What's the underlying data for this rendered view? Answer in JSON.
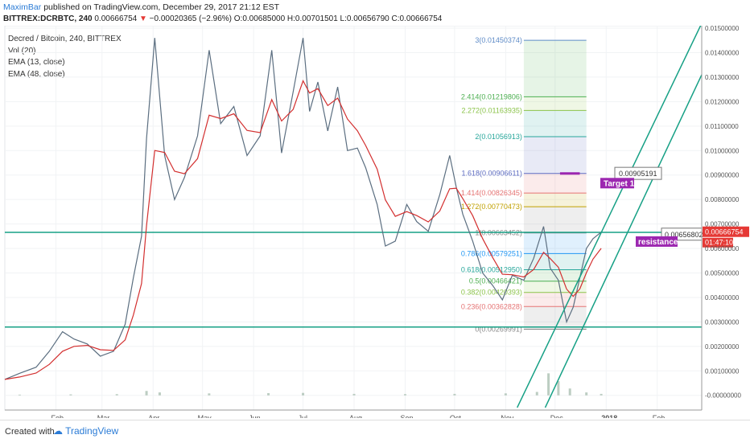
{
  "header": {
    "author": "MaximBar",
    "published": "published on TradingView.com, December 29, 2017 21:12 EST",
    "symbol": "BITTREX:DCRBTC, 240",
    "last": "0.00666754",
    "change": "−0.00020365 (−2.96%)",
    "ohlc": "O:0.00685000 H:0.00701501 L:0.00656790 C:0.00666754"
  },
  "legend": [
    "Decred / Bitcoin, 240, BITTREX",
    "Vol (20)",
    "EMA (13, close)",
    "EMA (48, close)"
  ],
  "footer": {
    "created_with": "Created with",
    "brand": "TradingView"
  },
  "colors": {
    "price": "#5b6e80",
    "ema13": "#d32f2f",
    "ema48": "#d32f2f",
    "channel": "#16a085",
    "target": "#9c27b0"
  },
  "chart_data": {
    "type": "line",
    "x_ticks": [
      "Feb",
      "Mar",
      "Apr",
      "May",
      "Jun",
      "Jul",
      "Aug",
      "Sep",
      "Oct",
      "Nov",
      "Dec",
      "2018",
      "Feb"
    ],
    "y_ticks": [
      "0.01500000",
      "0.01400000",
      "0.01300000",
      "0.01200000",
      "0.01100000",
      "0.01000000",
      "0.00900000",
      "0.00800000",
      "0.00700000",
      "0.00600000",
      "0.00500000",
      "0.00400000",
      "0.00300000",
      "0.00200000",
      "0.00100000",
      "-0.00000000"
    ],
    "ylim": [
      -0.0006,
      0.0151
    ],
    "price_series": [
      [
        "2017-01-01",
        0.00065
      ],
      [
        "2017-01-10",
        0.0009
      ],
      [
        "2017-01-20",
        0.00115
      ],
      [
        "2017-01-28",
        0.0018
      ],
      [
        "2017-02-05",
        0.0026
      ],
      [
        "2017-02-12",
        0.0023
      ],
      [
        "2017-02-20",
        0.0021
      ],
      [
        "2017-02-28",
        0.0016
      ],
      [
        "2017-03-08",
        0.0018
      ],
      [
        "2017-03-15",
        0.0029
      ],
      [
        "2017-03-20",
        0.0048
      ],
      [
        "2017-03-25",
        0.0065
      ],
      [
        "2017-03-28",
        0.0105
      ],
      [
        "2017-04-02",
        0.0146
      ],
      [
        "2017-04-08",
        0.0098
      ],
      [
        "2017-04-14",
        0.008
      ],
      [
        "2017-04-20",
        0.0089
      ],
      [
        "2017-04-28",
        0.0106
      ],
      [
        "2017-05-05",
        0.0141
      ],
      [
        "2017-05-12",
        0.0111
      ],
      [
        "2017-05-20",
        0.0118
      ],
      [
        "2017-05-28",
        0.0098
      ],
      [
        "2017-06-05",
        0.0106
      ],
      [
        "2017-06-12",
        0.0141
      ],
      [
        "2017-06-18",
        0.0099
      ],
      [
        "2017-06-25",
        0.0124
      ],
      [
        "2017-07-01",
        0.0146
      ],
      [
        "2017-07-05",
        0.0116
      ],
      [
        "2017-07-10",
        0.0128
      ],
      [
        "2017-07-16",
        0.0108
      ],
      [
        "2017-07-22",
        0.0126
      ],
      [
        "2017-07-28",
        0.01
      ],
      [
        "2017-08-03",
        0.0101
      ],
      [
        "2017-08-08",
        0.0093
      ],
      [
        "2017-08-15",
        0.0078
      ],
      [
        "2017-08-20",
        0.0061
      ],
      [
        "2017-08-26",
        0.0063
      ],
      [
        "2017-09-02",
        0.0078
      ],
      [
        "2017-09-08",
        0.0071
      ],
      [
        "2017-09-15",
        0.0067
      ],
      [
        "2017-09-22",
        0.0082
      ],
      [
        "2017-09-28",
        0.0098
      ],
      [
        "2017-10-02",
        0.0085
      ],
      [
        "2017-10-06",
        0.0074
      ],
      [
        "2017-10-12",
        0.0063
      ],
      [
        "2017-10-18",
        0.005
      ],
      [
        "2017-10-24",
        0.0045
      ],
      [
        "2017-10-30",
        0.0039
      ],
      [
        "2017-11-05",
        0.0049
      ],
      [
        "2017-11-12",
        0.0047
      ],
      [
        "2017-11-18",
        0.0056
      ],
      [
        "2017-11-24",
        0.0069
      ],
      [
        "2017-11-28",
        0.0052
      ],
      [
        "2017-12-03",
        0.0047
      ],
      [
        "2017-12-08",
        0.003
      ],
      [
        "2017-12-12",
        0.0036
      ],
      [
        "2017-12-16",
        0.0048
      ],
      [
        "2017-12-20",
        0.006
      ],
      [
        "2017-12-24",
        0.0064
      ],
      [
        "2017-12-29",
        0.00667
      ]
    ],
    "volume_series": [
      [
        "2017-01-10",
        3e-05
      ],
      [
        "2017-02-10",
        4e-05
      ],
      [
        "2017-03-10",
        5e-05
      ],
      [
        "2017-03-28",
        0.00018
      ],
      [
        "2017-04-05",
        0.00012
      ],
      [
        "2017-05-05",
        8e-05
      ],
      [
        "2017-06-10",
        9e-05
      ],
      [
        "2017-07-01",
        0.0001
      ],
      [
        "2017-08-01",
        6e-05
      ],
      [
        "2017-09-01",
        5e-05
      ],
      [
        "2017-10-01",
        6e-05
      ],
      [
        "2017-11-01",
        8e-05
      ],
      [
        "2017-11-20",
        0.00014
      ],
      [
        "2017-11-27",
        0.0009
      ],
      [
        "2017-12-03",
        0.00058
      ],
      [
        "2017-12-10",
        0.00028
      ],
      [
        "2017-12-20",
        0.00012
      ],
      [
        "2017-12-29",
        6e-05
      ]
    ],
    "fibonacci": [
      {
        "label": "3(0.01450374)",
        "value": 0.01450374,
        "color": "#5e8bc7"
      },
      {
        "label": "2.414(0.01219806)",
        "value": 0.01219806,
        "color": "#4caf50"
      },
      {
        "label": "2.272(0.01163935)",
        "value": 0.01163935,
        "color": "#8bc34a"
      },
      {
        "label": "2(0.01056913)",
        "value": 0.01056913,
        "color": "#26a69a"
      },
      {
        "label": "1.618(0.00906611)",
        "value": 0.00906611,
        "color": "#5c6bc0"
      },
      {
        "label": "1.414(0.00826345)",
        "value": 0.00826345,
        "color": "#e57373"
      },
      {
        "label": "1.272(0.00770473)",
        "value": 0.00770473,
        "color": "#c0a000"
      },
      {
        "label": "1(0.00663452)",
        "value": 0.00663452,
        "color": "#888888"
      },
      {
        "label": "0.786(0.00579251)",
        "value": 0.00579251,
        "color": "#2196f3"
      },
      {
        "label": "0.618(0.00512950)",
        "value": 0.0051295,
        "color": "#26a69a"
      },
      {
        "label": "0.5(0.00466421)",
        "value": 0.00466421,
        "color": "#4caf50"
      },
      {
        "label": "0.382(0.00420393)",
        "value": 0.00420393,
        "color": "#8bc34a"
      },
      {
        "label": "0.236(0.00362828)",
        "value": 0.00362828,
        "color": "#e57373"
      },
      {
        "label": "0(0.00269991)",
        "value": 0.00269991,
        "color": "#888888"
      }
    ],
    "horizontal_levels": [
      0.00666,
      0.00279
    ],
    "annotations": [
      {
        "text": "0.00905191",
        "value": 0.00905191
      },
      {
        "text": "Target 1",
        "value": 0.00885
      },
      {
        "text": "0.00656802",
        "value": 0.00656802
      },
      {
        "text": "resistance",
        "value": 0.0063
      }
    ],
    "price_label": {
      "value": "0.00666754",
      "time": "01:47:10"
    }
  }
}
